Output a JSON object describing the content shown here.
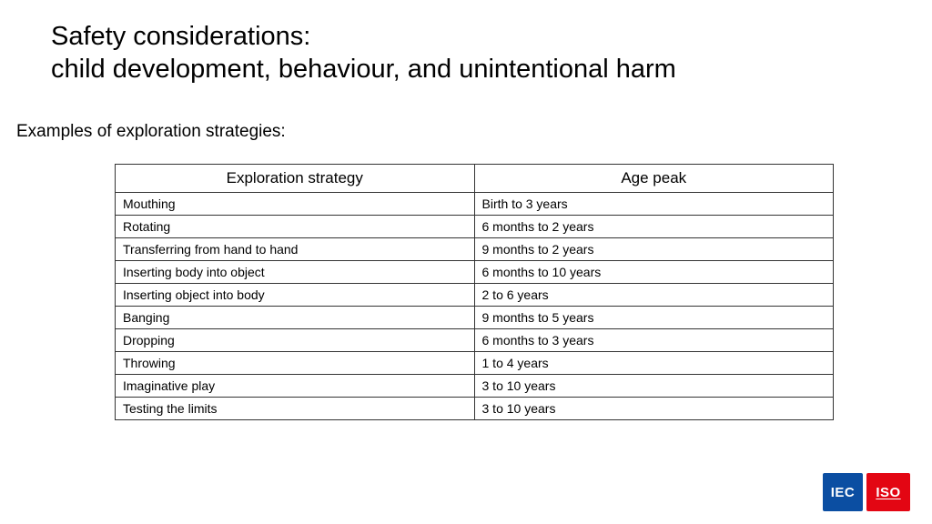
{
  "title_line1": "Safety considerations:",
  "title_line2": "child development, behaviour, and unintentional harm",
  "subtitle": "Examples of exploration strategies:",
  "table": {
    "columns": [
      "Exploration strategy",
      "Age peak"
    ],
    "rows": [
      [
        "Mouthing",
        "Birth to 3 years"
      ],
      [
        "Rotating",
        "6 months to 2 years"
      ],
      [
        "Transferring from hand to hand",
        "9 months to 2 years"
      ],
      [
        "Inserting body into object",
        "6 months to 10 years"
      ],
      [
        "Inserting object into body",
        "2 to 6 years"
      ],
      [
        "Banging",
        "9 months to 5 years"
      ],
      [
        "Dropping",
        "6 months to 3 years"
      ],
      [
        "Throwing",
        "1 to 4 years"
      ],
      [
        "Imaginative play",
        "3 to 10 years"
      ],
      [
        "Testing the limits",
        "3 to 10 years"
      ]
    ],
    "border_color": "#333333",
    "header_fontsize": 17,
    "cell_fontsize": 14
  },
  "logos": {
    "iec": {
      "text": "IEC",
      "bg": "#0b4ea2",
      "fg": "#ffffff"
    },
    "iso": {
      "text": "ISO",
      "bg": "#e30613",
      "fg": "#ffffff"
    }
  },
  "background_color": "#ffffff"
}
